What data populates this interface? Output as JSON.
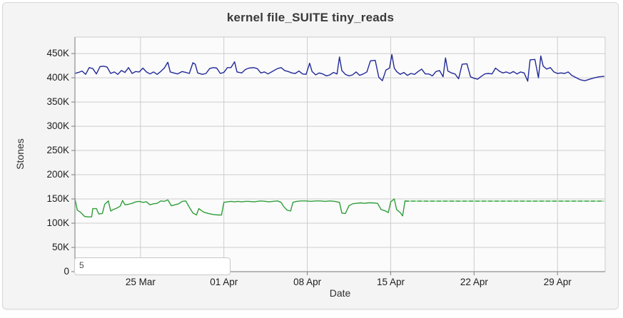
{
  "window": {
    "background": "#ffffff",
    "card_background": "#f4f4f5",
    "card_border": "#d8d8d8",
    "plot_background": "#fbfbfb",
    "grid_color": "#cccccc",
    "axis_color": "#8f8f8f",
    "tick_text_color": "#1d1d1d"
  },
  "chart": {
    "title": "kernel file_SUITE tiny_reads",
    "overlay_input_value": "5"
  },
  "chart_data": {
    "type": "line",
    "title": "kernel file_SUITE tiny_reads",
    "xlabel": "Date",
    "ylabel": "Stones",
    "grid": true,
    "legend": "none",
    "y_unit": "K (thousands of Stones)",
    "x_unit": "days offset from 19 Mar (left edge of plot)",
    "xlim": [
      0,
      44.5
    ],
    "ylim": [
      0,
      484
    ],
    "y_ticks": [
      {
        "value": 0,
        "label": "0"
      },
      {
        "value": 50,
        "label": "50K"
      },
      {
        "value": 100,
        "label": "100K"
      },
      {
        "value": 150,
        "label": "150K"
      },
      {
        "value": 200,
        "label": "200K"
      },
      {
        "value": 250,
        "label": "250K"
      },
      {
        "value": 300,
        "label": "300K"
      },
      {
        "value": 350,
        "label": "350K"
      },
      {
        "value": 400,
        "label": "400K"
      },
      {
        "value": 450,
        "label": "450K"
      }
    ],
    "x_ticks": [
      {
        "day": 5.5,
        "label": "25 Mar"
      },
      {
        "day": 12.5,
        "label": "01 Apr"
      },
      {
        "day": 19.5,
        "label": "08 Apr"
      },
      {
        "day": 26.5,
        "label": "15 Apr"
      },
      {
        "day": 33.5,
        "label": "22 Apr"
      },
      {
        "day": 40.5,
        "label": "29 Apr"
      }
    ],
    "series": [
      {
        "name": "blue-series",
        "color": "#212a97",
        "style": "solid",
        "points": [
          [
            0,
            409
          ],
          [
            0.3,
            411
          ],
          [
            0.6,
            414
          ],
          [
            0.9,
            407
          ],
          [
            1.2,
            421
          ],
          [
            1.5,
            419
          ],
          [
            1.8,
            408
          ],
          [
            2.1,
            423
          ],
          [
            2.4,
            424
          ],
          [
            2.7,
            422
          ],
          [
            3,
            409
          ],
          [
            3.3,
            412
          ],
          [
            3.6,
            407
          ],
          [
            3.9,
            415
          ],
          [
            4.2,
            411
          ],
          [
            4.5,
            421
          ],
          [
            4.8,
            409
          ],
          [
            5.1,
            413
          ],
          [
            5.4,
            412
          ],
          [
            5.7,
            420
          ],
          [
            6,
            412
          ],
          [
            6.3,
            408
          ],
          [
            6.6,
            412
          ],
          [
            6.9,
            407
          ],
          [
            7.2,
            413
          ],
          [
            7.5,
            420
          ],
          [
            7.8,
            432
          ],
          [
            8,
            412
          ],
          [
            8.3,
            410
          ],
          [
            8.6,
            408
          ],
          [
            9,
            413
          ],
          [
            9.3,
            411
          ],
          [
            9.6,
            409
          ],
          [
            9.9,
            431
          ],
          [
            10.1,
            428
          ],
          [
            10.3,
            410
          ],
          [
            10.7,
            407
          ],
          [
            11,
            409
          ],
          [
            11.3,
            419
          ],
          [
            11.6,
            421
          ],
          [
            11.9,
            420
          ],
          [
            12.2,
            409
          ],
          [
            12.5,
            411
          ],
          [
            12.8,
            421
          ],
          [
            13.1,
            421
          ],
          [
            13.4,
            433
          ],
          [
            13.6,
            412
          ],
          [
            14,
            410
          ],
          [
            14.3,
            417
          ],
          [
            14.6,
            420
          ],
          [
            15,
            421
          ],
          [
            15.3,
            419
          ],
          [
            15.6,
            410
          ],
          [
            15.9,
            412
          ],
          [
            16.2,
            408
          ],
          [
            16.5,
            412
          ],
          [
            17,
            419
          ],
          [
            17.3,
            421
          ],
          [
            17.6,
            415
          ],
          [
            17.9,
            413
          ],
          [
            18.2,
            410
          ],
          [
            18.5,
            409
          ],
          [
            18.8,
            414
          ],
          [
            19.1,
            408
          ],
          [
            19.4,
            407
          ],
          [
            19.7,
            430
          ],
          [
            19.9,
            413
          ],
          [
            20.2,
            406
          ],
          [
            20.5,
            410
          ],
          [
            20.8,
            408
          ],
          [
            21.1,
            404
          ],
          [
            21.4,
            406
          ],
          [
            21.7,
            411
          ],
          [
            22,
            408
          ],
          [
            22.2,
            443
          ],
          [
            22.4,
            415
          ],
          [
            22.7,
            407
          ],
          [
            23,
            404
          ],
          [
            23.3,
            406
          ],
          [
            23.6,
            412
          ],
          [
            23.9,
            405
          ],
          [
            24.2,
            408
          ],
          [
            24.5,
            412
          ],
          [
            24.8,
            435
          ],
          [
            25.2,
            436
          ],
          [
            25.5,
            401
          ],
          [
            25.8,
            394
          ],
          [
            26.1,
            416
          ],
          [
            26.4,
            420
          ],
          [
            26.6,
            448
          ],
          [
            26.8,
            420
          ],
          [
            27,
            413
          ],
          [
            27.3,
            407
          ],
          [
            27.6,
            411
          ],
          [
            27.9,
            405
          ],
          [
            28.2,
            409
          ],
          [
            28.5,
            407
          ],
          [
            28.8,
            413
          ],
          [
            29.1,
            418
          ],
          [
            29.4,
            408
          ],
          [
            29.7,
            408
          ],
          [
            30,
            404
          ],
          [
            30.3,
            413
          ],
          [
            30.6,
            415
          ],
          [
            30.9,
            402
          ],
          [
            31.1,
            441
          ],
          [
            31.3,
            414
          ],
          [
            31.6,
            410
          ],
          [
            31.9,
            408
          ],
          [
            32.2,
            398
          ],
          [
            32.5,
            428
          ],
          [
            32.9,
            429
          ],
          [
            33.2,
            402
          ],
          [
            33.5,
            399
          ],
          [
            33.8,
            397
          ],
          [
            34.1,
            403
          ],
          [
            34.4,
            408
          ],
          [
            34.7,
            409
          ],
          [
            35,
            408
          ],
          [
            35.3,
            420
          ],
          [
            35.6,
            414
          ],
          [
            35.9,
            410
          ],
          [
            36.2,
            412
          ],
          [
            36.5,
            409
          ],
          [
            36.8,
            413
          ],
          [
            37.1,
            408
          ],
          [
            37.4,
            412
          ],
          [
            37.7,
            410
          ],
          [
            38,
            393
          ],
          [
            38.2,
            437
          ],
          [
            38.6,
            438
          ],
          [
            38.9,
            400
          ],
          [
            39.1,
            445
          ],
          [
            39.3,
            424
          ],
          [
            39.6,
            418
          ],
          [
            39.9,
            421
          ],
          [
            40.2,
            412
          ],
          [
            40.5,
            409
          ],
          [
            40.8,
            410
          ],
          [
            41.1,
            409
          ],
          [
            41.4,
            412
          ],
          [
            41.7,
            405
          ],
          [
            42,
            401
          ],
          [
            42.4,
            396
          ],
          [
            42.8,
            394
          ],
          [
            43.2,
            397
          ],
          [
            43.6,
            400
          ],
          [
            44,
            402
          ],
          [
            44.4,
            403
          ]
        ]
      },
      {
        "name": "green-series",
        "color": "#2f9e3a",
        "style": "solid",
        "points": [
          [
            0,
            150
          ],
          [
            0.2,
            127
          ],
          [
            0.5,
            122
          ],
          [
            0.8,
            114
          ],
          [
            1.1,
            113
          ],
          [
            1.4,
            113
          ],
          [
            1.5,
            130
          ],
          [
            1.8,
            130
          ],
          [
            2,
            119
          ],
          [
            2.3,
            120
          ],
          [
            2.5,
            139
          ],
          [
            2.8,
            146
          ],
          [
            3,
            125
          ],
          [
            3.2,
            128
          ],
          [
            3.5,
            131
          ],
          [
            3.8,
            135
          ],
          [
            4,
            147
          ],
          [
            4.2,
            138
          ],
          [
            4.5,
            139
          ],
          [
            4.8,
            141
          ],
          [
            5.1,
            144
          ],
          [
            5.4,
            145
          ],
          [
            5.7,
            143
          ],
          [
            6,
            144
          ],
          [
            6.3,
            138
          ],
          [
            6.6,
            140
          ],
          [
            6.9,
            141
          ],
          [
            7.2,
            146
          ],
          [
            7.5,
            145
          ],
          [
            7.8,
            148
          ],
          [
            8.1,
            136
          ],
          [
            8.4,
            138
          ],
          [
            8.7,
            140
          ],
          [
            9,
            145
          ],
          [
            9.3,
            146
          ],
          [
            9.6,
            133
          ],
          [
            9.9,
            121
          ],
          [
            10.2,
            117
          ],
          [
            10.4,
            130
          ],
          [
            10.8,
            123
          ],
          [
            11.2,
            120
          ],
          [
            11.6,
            118
          ],
          [
            12,
            117
          ],
          [
            12.3,
            117
          ],
          [
            12.5,
            143
          ],
          [
            12.8,
            144
          ],
          [
            13.1,
            145
          ],
          [
            13.4,
            144
          ],
          [
            13.7,
            145
          ],
          [
            14,
            144
          ],
          [
            14.3,
            145
          ],
          [
            14.6,
            145
          ],
          [
            15,
            144
          ],
          [
            15.3,
            145
          ],
          [
            15.6,
            146
          ],
          [
            16,
            145
          ],
          [
            16.3,
            144
          ],
          [
            16.6,
            145
          ],
          [
            17,
            146
          ],
          [
            17.3,
            143
          ],
          [
            17.5,
            135
          ],
          [
            17.8,
            127
          ],
          [
            18.1,
            125
          ],
          [
            18.3,
            143
          ],
          [
            18.6,
            145
          ],
          [
            19,
            146
          ],
          [
            19.4,
            146
          ],
          [
            19.8,
            145
          ],
          [
            20.2,
            146
          ],
          [
            20.6,
            146
          ],
          [
            21,
            145
          ],
          [
            21.4,
            146
          ],
          [
            21.8,
            145
          ],
          [
            22.2,
            143
          ],
          [
            22.4,
            121
          ],
          [
            22.7,
            120
          ],
          [
            23,
            136
          ],
          [
            23.3,
            140
          ],
          [
            23.6,
            141
          ],
          [
            24,
            142
          ],
          [
            24.3,
            141
          ],
          [
            24.6,
            142
          ],
          [
            25,
            142
          ],
          [
            25.4,
            141
          ],
          [
            25.7,
            128
          ],
          [
            26,
            126
          ],
          [
            26.3,
            122
          ],
          [
            26.5,
            144
          ],
          [
            26.8,
            150
          ],
          [
            27,
            128
          ],
          [
            27.3,
            122
          ],
          [
            27.5,
            115
          ],
          [
            27.7,
            146
          ],
          [
            28,
            145.5
          ]
        ]
      },
      {
        "name": "green-flat-light",
        "color": "#8fd492",
        "style": "solid",
        "points": [
          [
            27.7,
            145.5
          ],
          [
            44.4,
            145.5
          ]
        ]
      },
      {
        "name": "green-flat-dashed",
        "color": "#2f9e3a",
        "style": "dashed",
        "points": [
          [
            27.7,
            145.5
          ],
          [
            44.4,
            145.5
          ]
        ]
      }
    ]
  }
}
